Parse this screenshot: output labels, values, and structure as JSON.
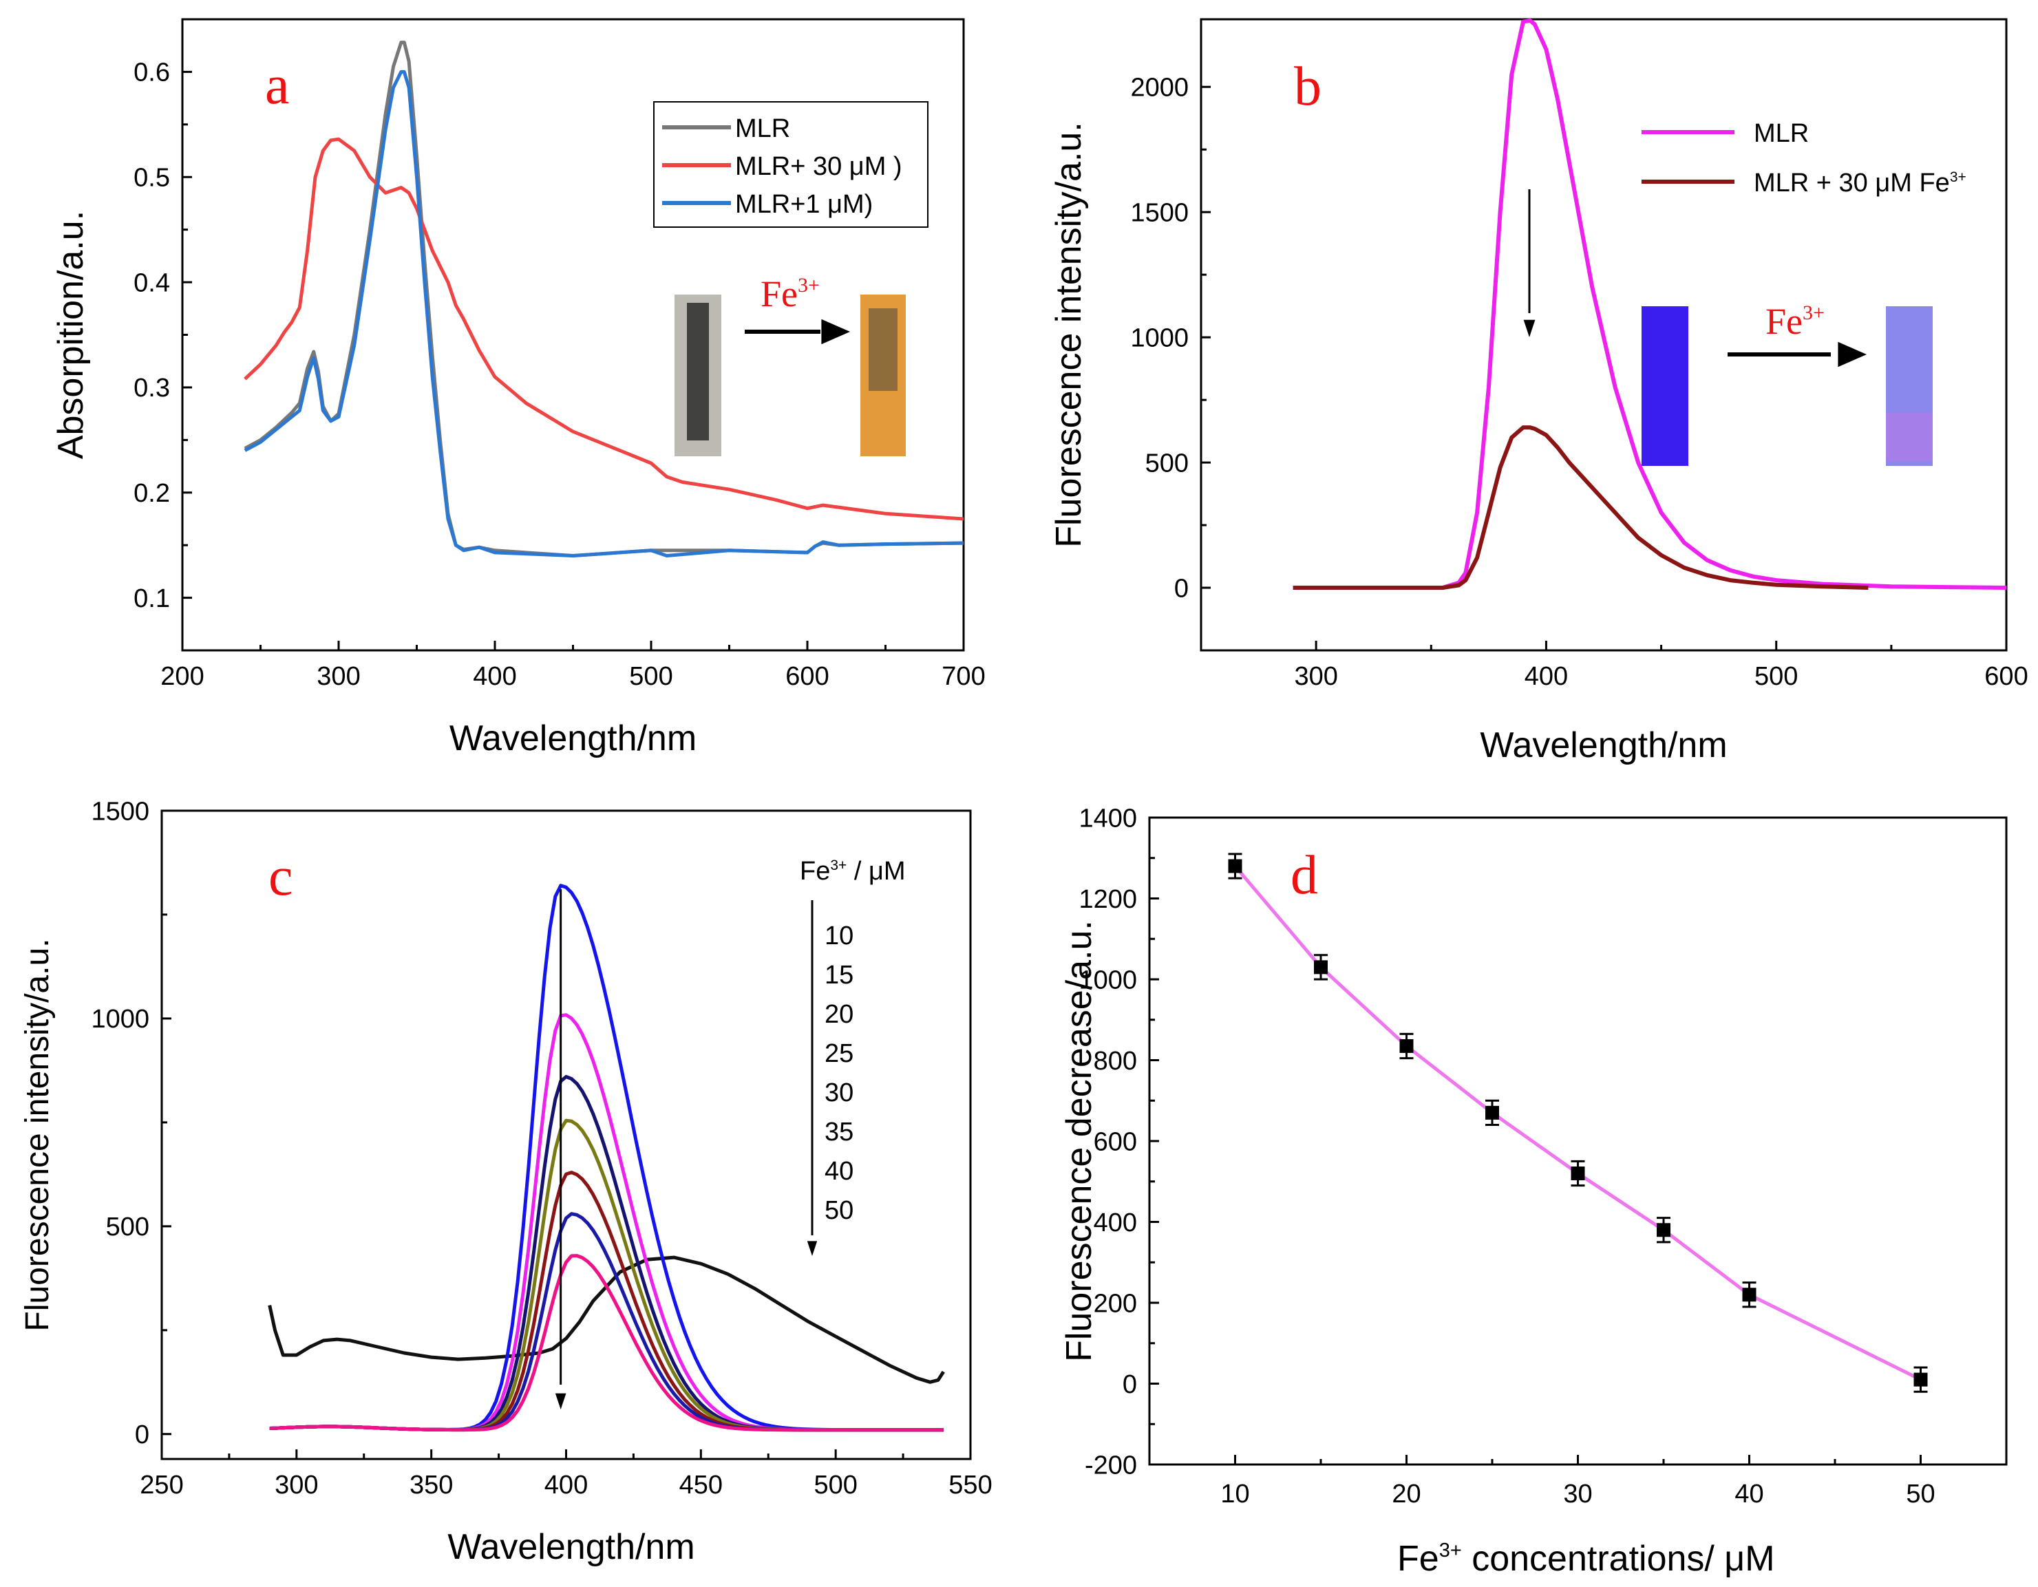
{
  "figure": {
    "chart_data": [
      {
        "type": "line",
        "panel_label": "a",
        "xlabel": "Wavelength/nm",
        "ylabel": "Absorpition/a.u.",
        "xlim": [
          200,
          700
        ],
        "ylim": [
          0.05,
          0.65
        ],
        "xticks": [
          200,
          300,
          400,
          500,
          600,
          700
        ],
        "yticks": [
          0.1,
          0.2,
          0.3,
          0.4,
          0.5,
          0.6
        ],
        "ytick_labels": [
          "0.1",
          "0.2",
          "0.3",
          "0.4",
          "0.5",
          "0.6"
        ],
        "inset": {
          "arrow_label": "Fe",
          "arrow_label_sup": "3+",
          "colors": [
            "#bdbab4",
            "#e39a3a"
          ]
        },
        "series": [
          {
            "name": "MLR",
            "color": "#777777",
            "x": [
              240,
              250,
              260,
              270,
              275,
              280,
              284,
              287,
              290,
              295,
              300,
              310,
              320,
              330,
              335,
              340,
              342,
              345,
              350,
              355,
              360,
              365,
              370,
              375,
              380,
              390,
              400,
              450,
              500,
              550,
              600,
              605,
              610,
              620,
              650,
              700
            ],
            "y": [
              0.242,
              0.25,
              0.262,
              0.276,
              0.285,
              0.318,
              0.334,
              0.315,
              0.282,
              0.268,
              0.275,
              0.35,
              0.45,
              0.56,
              0.605,
              0.628,
              0.628,
              0.61,
              0.52,
              0.42,
              0.33,
              0.25,
              0.18,
              0.15,
              0.146,
              0.148,
              0.145,
              0.14,
              0.145,
              0.145,
              0.143,
              0.149,
              0.152,
              0.15,
              0.151,
              0.152
            ]
          },
          {
            "name": "MLR+ 30 μM )",
            "color": "#ee4444",
            "x": [
              240,
              250,
              260,
              265,
              270,
              275,
              280,
              285,
              290,
              295,
              300,
              310,
              320,
              330,
              340,
              345,
              350,
              355,
              360,
              370,
              375,
              380,
              390,
              400,
              420,
              450,
              480,
              500,
              510,
              520,
              550,
              580,
              600,
              610,
              620,
              650,
              700
            ],
            "y": [
              0.308,
              0.322,
              0.34,
              0.352,
              0.362,
              0.376,
              0.43,
              0.5,
              0.525,
              0.535,
              0.536,
              0.525,
              0.5,
              0.485,
              0.49,
              0.485,
              0.47,
              0.45,
              0.43,
              0.4,
              0.378,
              0.365,
              0.335,
              0.31,
              0.285,
              0.258,
              0.24,
              0.228,
              0.215,
              0.21,
              0.203,
              0.193,
              0.185,
              0.188,
              0.186,
              0.18,
              0.175
            ]
          },
          {
            "name": "MLR+1 μM)",
            "color": "#2a78d2",
            "x": [
              240,
              250,
              260,
              270,
              275,
              280,
              284,
              287,
              290,
              295,
              300,
              310,
              320,
              330,
              335,
              340,
              342,
              345,
              350,
              355,
              360,
              365,
              370,
              375,
              380,
              390,
              400,
              450,
              500,
              510,
              550,
              600,
              605,
              610,
              620,
              650,
              700
            ],
            "y": [
              0.24,
              0.248,
              0.26,
              0.272,
              0.278,
              0.31,
              0.328,
              0.308,
              0.278,
              0.268,
              0.272,
              0.34,
              0.44,
              0.545,
              0.585,
              0.6,
              0.6,
              0.585,
              0.5,
              0.4,
              0.31,
              0.24,
              0.175,
              0.15,
              0.145,
              0.148,
              0.143,
              0.14,
              0.145,
              0.14,
              0.145,
              0.143,
              0.149,
              0.153,
              0.15,
              0.151,
              0.152
            ]
          }
        ]
      },
      {
        "type": "line",
        "panel_label": "b",
        "xlabel": "Wavelength/nm",
        "ylabel": "Fluorescence intensity/a.u.",
        "xlim": [
          250,
          600
        ],
        "ylim": [
          -250,
          2270
        ],
        "xticks": [
          300,
          400,
          500,
          600
        ],
        "yticks": [
          0,
          500,
          1000,
          1500,
          2000
        ],
        "inset": {
          "arrow_label": "Fe",
          "arrow_label_sup": "3+",
          "colors": [
            "#3a1ef0",
            "#8a88ea"
          ]
        },
        "series": [
          {
            "name": "MLR",
            "color": "#ee22ee",
            "x": [
              290,
              330,
              355,
              362,
              365,
              370,
              375,
              380,
              385,
              390,
              393,
              395,
              400,
              405,
              410,
              420,
              430,
              440,
              450,
              460,
              470,
              480,
              490,
              500,
              520,
              550,
              600
            ],
            "y": [
              0,
              0,
              0,
              20,
              60,
              300,
              800,
              1500,
              2050,
              2260,
              2265,
              2250,
              2150,
              1950,
              1700,
              1200,
              800,
              500,
              300,
              180,
              110,
              70,
              45,
              30,
              15,
              5,
              0
            ]
          },
          {
            "name": "MLR + 30 μM Fe",
            "name_sup": "3+",
            "color": "#8b1414",
            "x": [
              290,
              330,
              355,
              362,
              365,
              370,
              375,
              380,
              385,
              390,
              393,
              395,
              400,
              405,
              410,
              420,
              430,
              440,
              450,
              460,
              470,
              480,
              490,
              500,
              520,
              540
            ],
            "y": [
              0,
              0,
              0,
              10,
              30,
              120,
              300,
              480,
              600,
              640,
              640,
              635,
              610,
              560,
              500,
              400,
              300,
              200,
              130,
              80,
              50,
              30,
              20,
              12,
              5,
              0
            ]
          }
        ]
      },
      {
        "type": "line",
        "panel_label": "c",
        "xlabel": "Wavelength/nm",
        "ylabel": "Fluorescence intensity/a.u.",
        "xlim": [
          250,
          550
        ],
        "ylim": [
          -60,
          1500
        ],
        "xticks": [
          250,
          300,
          350,
          400,
          450,
          500,
          550
        ],
        "yticks": [
          0,
          500,
          1000,
          1500
        ],
        "legend_title": "Fe",
        "legend_title_sup": "3+",
        "legend_unit": " / μM",
        "legend_values": [
          "10",
          "15",
          "20",
          "25",
          "30",
          "35",
          "40",
          "50"
        ],
        "peaks": [
          1310,
          1000,
          850,
          745,
          620,
          520,
          420
        ],
        "series_colors": [
          "#1414ee",
          "#ee22ee",
          "#141470",
          "#7a7a14",
          "#8b1414",
          "#1a1aa8",
          "#ee1188"
        ],
        "reference": {
          "color": "#111111",
          "x": [
            290,
            292,
            295,
            300,
            305,
            310,
            315,
            320,
            330,
            340,
            350,
            360,
            370,
            380,
            390,
            395,
            400,
            405,
            410,
            420,
            430,
            440,
            450,
            460,
            470,
            480,
            490,
            500,
            510,
            520,
            530,
            535,
            538,
            540
          ],
          "y": [
            310,
            250,
            190,
            190,
            210,
            225,
            228,
            225,
            210,
            195,
            185,
            180,
            183,
            188,
            195,
            205,
            230,
            270,
            320,
            390,
            420,
            425,
            410,
            385,
            350,
            310,
            270,
            235,
            200,
            165,
            135,
            125,
            130,
            150
          ]
        }
      },
      {
        "type": "scatter",
        "panel_label": "d",
        "xlabel": "Fe",
        "xlabel_sup": "3+",
        "xlabel_rest": " concentrations/ μM",
        "ylabel": "Fluorescence decrease/a.u.",
        "xlim": [
          5,
          55
        ],
        "ylim": [
          -200,
          1400
        ],
        "xticks": [
          10,
          20,
          30,
          40,
          50
        ],
        "yticks": [
          -200,
          0,
          200,
          400,
          600,
          800,
          1000,
          1200,
          1400
        ],
        "fit_color": "#ee77ee",
        "x": [
          10,
          15,
          20,
          25,
          30,
          35,
          40,
          50
        ],
        "y": [
          1280,
          1030,
          835,
          670,
          520,
          380,
          220,
          10
        ],
        "err": [
          30,
          30,
          30,
          30,
          30,
          30,
          30,
          30
        ]
      }
    ]
  }
}
